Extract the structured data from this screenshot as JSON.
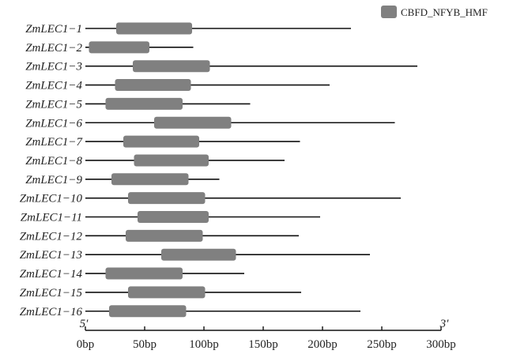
{
  "legend": {
    "label": "CBFD_NFYB_HMF",
    "color": "#808080"
  },
  "colors": {
    "domain": "#808080",
    "line": "#111111",
    "text": "#222222"
  },
  "axis": {
    "five_prime": "5′",
    "three_prime": "3′",
    "min": 0,
    "max": 300,
    "ticks": [
      {
        "value": 0,
        "label": "0bp"
      },
      {
        "value": 50,
        "label": "50bp"
      },
      {
        "value": 100,
        "label": "100bp"
      },
      {
        "value": 150,
        "label": "150bp"
      },
      {
        "value": 200,
        "label": "200bp"
      },
      {
        "value": 250,
        "label": "250bp"
      },
      {
        "value": 300,
        "label": "300bp"
      }
    ]
  },
  "chart_data": {
    "type": "gene-structure",
    "unit": "bp",
    "domain_name": "CBFD_NFYB_HMF",
    "genes": [
      {
        "name": "ZmLEC1−1",
        "length": 224,
        "domain": [
          26,
          90
        ]
      },
      {
        "name": "ZmLEC1−2",
        "length": 91,
        "domain": [
          3,
          54
        ]
      },
      {
        "name": "ZmLEC1−3",
        "length": 280,
        "domain": [
          40,
          105
        ]
      },
      {
        "name": "ZmLEC1−4",
        "length": 206,
        "domain": [
          25,
          89
        ]
      },
      {
        "name": "ZmLEC1−5",
        "length": 139,
        "domain": [
          17,
          82
        ]
      },
      {
        "name": "ZmLEC1−6",
        "length": 261,
        "domain": [
          58,
          123
        ]
      },
      {
        "name": "ZmLEC1−7",
        "length": 181,
        "domain": [
          32,
          96
        ]
      },
      {
        "name": "ZmLEC1−8",
        "length": 168,
        "domain": [
          41,
          104
        ]
      },
      {
        "name": "ZmLEC1−9",
        "length": 113,
        "domain": [
          22,
          87
        ]
      },
      {
        "name": "ZmLEC1−10",
        "length": 266,
        "domain": [
          36,
          101
        ]
      },
      {
        "name": "ZmLEC1−11",
        "length": 198,
        "domain": [
          44,
          104
        ]
      },
      {
        "name": "ZmLEC1−12",
        "length": 180,
        "domain": [
          34,
          99
        ]
      },
      {
        "name": "ZmLEC1−13",
        "length": 240,
        "domain": [
          64,
          127
        ]
      },
      {
        "name": "ZmLEC1−14",
        "length": 134,
        "domain": [
          17,
          82
        ]
      },
      {
        "name": "ZmLEC1−15",
        "length": 182,
        "domain": [
          36,
          101
        ]
      },
      {
        "name": "ZmLEC1−16",
        "length": 232,
        "domain": [
          20,
          85
        ]
      }
    ]
  }
}
